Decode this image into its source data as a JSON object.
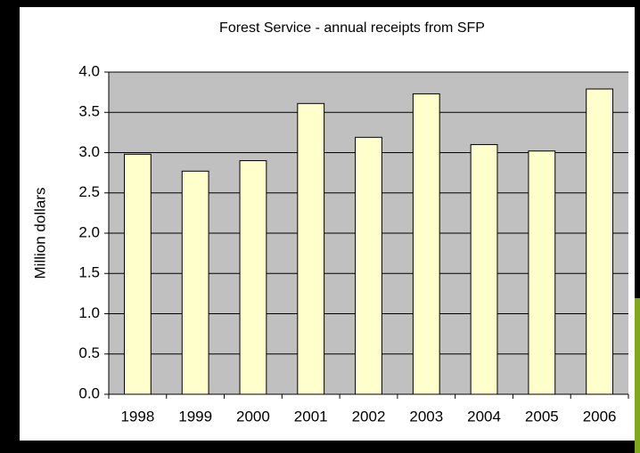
{
  "chart_data": {
    "type": "bar",
    "title": "Forest Service - annual receipts from SFP",
    "y_label": "Million dollars",
    "categories": [
      "1998",
      "1999",
      "2000",
      "2001",
      "2002",
      "2003",
      "2004",
      "2005",
      "2006"
    ],
    "values": [
      2.98,
      2.77,
      2.9,
      3.61,
      3.19,
      3.73,
      3.1,
      3.02,
      3.79
    ],
    "color": "#ffffcc",
    "ylim": [
      0,
      4
    ],
    "yticks": [
      {
        "value": 0,
        "label": "0.0"
      },
      0.5,
      {
        "value": 1,
        "label": "1.0"
      },
      1.5,
      {
        "value": 2,
        "label": "2.0"
      },
      2.5,
      {
        "value": 3,
        "label": "3.0"
      },
      3.5,
      {
        "value": 4,
        "label": "4.0"
      }
    ],
    "grid": true
  }
}
